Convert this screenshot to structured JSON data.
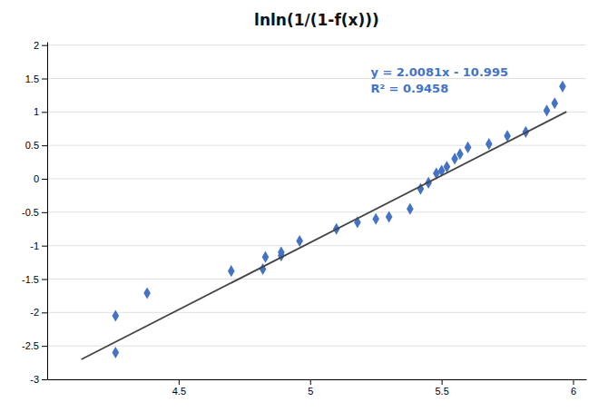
{
  "chart_data": {
    "type": "scatter",
    "title": "lnln(1/(1-f(x)))",
    "series": [
      {
        "type": "scatter",
        "color": "#4472C4",
        "marker": "diamond",
        "x": [
          4.26,
          4.26,
          4.38,
          4.7,
          4.82,
          4.83,
          4.89,
          4.89,
          4.96,
          5.1,
          5.18,
          5.25,
          5.3,
          5.38,
          5.42,
          5.45,
          5.48,
          5.5,
          5.52,
          5.55,
          5.57,
          5.6,
          5.68,
          5.75,
          5.82,
          5.9,
          5.93,
          5.96
        ],
        "values": [
          -2.6,
          -2.05,
          -1.71,
          -1.38,
          -1.35,
          -1.17,
          -1.15,
          -1.1,
          -0.93,
          -0.75,
          -0.65,
          -0.6,
          -0.57,
          -0.45,
          -0.15,
          -0.06,
          0.08,
          0.12,
          0.18,
          0.3,
          0.37,
          0.47,
          0.52,
          0.64,
          0.7,
          1.02,
          1.13,
          1.38
        ]
      },
      {
        "type": "line",
        "color": "#444444",
        "line_style": "solid",
        "x": [
          4.13,
          5.975
        ],
        "values": [
          -2.701547,
          1.0033975
        ]
      }
    ],
    "annotations": [
      {
        "text": "y = 2.0081x - 10.995",
        "color": "#4472C4"
      },
      {
        "text": "R² = 0.9458",
        "color": "#4472C4"
      }
    ],
    "xlim": [
      4.0,
      6.05
    ],
    "ylim": [
      -3.0,
      2.05
    ],
    "xticks": [
      4.5,
      5,
      5.5,
      6
    ],
    "yticks": [
      -3,
      -2.5,
      -2,
      -1.5,
      -1,
      -0.5,
      0,
      0.5,
      1,
      1.5,
      2
    ],
    "grid": true
  }
}
